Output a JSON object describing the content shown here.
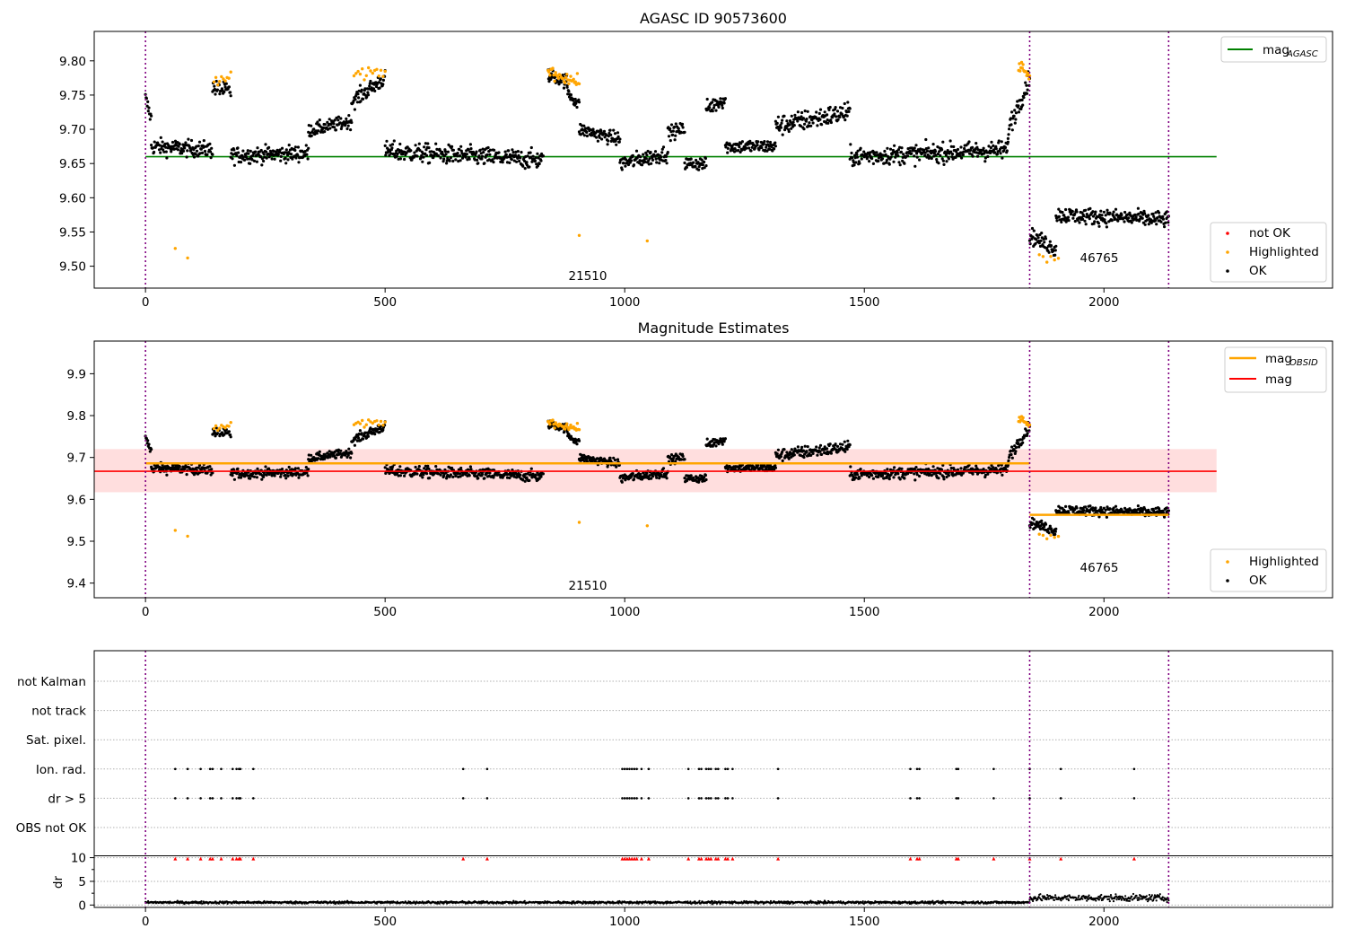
{
  "chart_data": [
    {
      "type": "scatter",
      "title": "AGASC ID 90573600",
      "xlim": [
        -107,
        2477
      ],
      "ylim": [
        9.468,
        9.843
      ],
      "xticks": [
        "0",
        "500",
        "1000",
        "1500",
        "2000"
      ],
      "xtick_values": [
        0,
        500,
        1000,
        1500,
        2000
      ],
      "yticks": [
        "9.50",
        "9.55",
        "9.60",
        "9.65",
        "9.70",
        "9.75",
        "9.80"
      ],
      "ytick_values": [
        9.5,
        9.55,
        9.6,
        9.65,
        9.7,
        9.75,
        9.8
      ],
      "obsid_boundaries": [
        0,
        1845,
        2135
      ],
      "obsid_labels": [
        {
          "text": "21510",
          "x": 922,
          "y": 9.478
        },
        {
          "text": "46765",
          "x": 1992,
          "y": 9.507
        }
      ],
      "reference_lines": [
        {
          "name": "magAGASC",
          "y": 9.66,
          "x": [
            0,
            2235
          ],
          "color": "#008000"
        }
      ],
      "legend_top": {
        "position": "upper right",
        "entries": [
          {
            "label": "mag",
            "sub": "AGASC",
            "color": "#008000"
          }
        ]
      },
      "legend_bottom": {
        "position": "lower right",
        "entries": [
          {
            "label": "not OK",
            "color": "#ff0000"
          },
          {
            "label": "Highlighted",
            "color": "#ffa500"
          },
          {
            "label": "OK",
            "color": "#000000"
          }
        ]
      },
      "segments": [
        {
          "x": [
            0,
            12
          ],
          "y": [
            9.745,
            9.715
          ],
          "scatter": 0.012
        },
        {
          "x": [
            12,
            140
          ],
          "y": [
            9.675,
            9.67
          ],
          "scatter": 0.012
        },
        {
          "x": [
            140,
            178
          ],
          "y": [
            9.76,
            9.755
          ],
          "scatter": 0.012
        },
        {
          "x": [
            178,
            340
          ],
          "y": [
            9.662,
            9.665
          ],
          "scatter": 0.012
        },
        {
          "x": [
            340,
            430
          ],
          "y": [
            9.698,
            9.712
          ],
          "scatter": 0.01
        },
        {
          "x": [
            430,
            500
          ],
          "y": [
            9.74,
            9.775
          ],
          "scatter": 0.012
        },
        {
          "x": [
            500,
            830
          ],
          "y": [
            9.668,
            9.655
          ],
          "scatter": 0.014
        },
        {
          "x": [
            840,
            880
          ],
          "y": [
            9.78,
            9.77
          ],
          "scatter": 0.01
        },
        {
          "x": [
            880,
            905
          ],
          "y": [
            9.755,
            9.735
          ],
          "scatter": 0.01
        },
        {
          "x": [
            905,
            990
          ],
          "y": [
            9.7,
            9.685
          ],
          "scatter": 0.01
        },
        {
          "x": [
            990,
            1090
          ],
          "y": [
            9.65,
            9.665
          ],
          "scatter": 0.012
        },
        {
          "x": [
            1090,
            1125
          ],
          "y": [
            9.695,
            9.7
          ],
          "scatter": 0.01
        },
        {
          "x": [
            1125,
            1170
          ],
          "y": [
            9.65,
            9.65
          ],
          "scatter": 0.01
        },
        {
          "x": [
            1170,
            1210
          ],
          "y": [
            9.73,
            9.745
          ],
          "scatter": 0.012
        },
        {
          "x": [
            1210,
            1315
          ],
          "y": [
            9.675,
            9.675
          ],
          "scatter": 0.01
        },
        {
          "x": [
            1315,
            1470
          ],
          "y": [
            9.705,
            9.725
          ],
          "scatter": 0.015
        },
        {
          "x": [
            1470,
            1800
          ],
          "y": [
            9.66,
            9.67
          ],
          "scatter": 0.014
        },
        {
          "x": [
            1800,
            1845
          ],
          "y": [
            9.7,
            9.775
          ],
          "scatter": 0.015
        },
        {
          "x": [
            1845,
            1900
          ],
          "y": [
            9.545,
            9.525
          ],
          "scatter": 0.012
        },
        {
          "x": [
            1900,
            2135
          ],
          "y": [
            9.575,
            9.568
          ],
          "scatter": 0.012
        }
      ],
      "highlighted": [
        {
          "x": [
            143,
            178
          ],
          "y": [
            9.772,
            9.774
          ],
          "n": 10
        },
        {
          "x": [
            435,
            500
          ],
          "y": [
            9.778,
            9.785
          ],
          "n": 16
        },
        {
          "x": [
            840,
            905
          ],
          "y": [
            9.785,
            9.768
          ],
          "n": 34
        },
        {
          "x": [
            1822,
            1845
          ],
          "y": [
            9.793,
            9.78
          ],
          "n": 16
        },
        {
          "x": [
            1865,
            1905
          ],
          "y": [
            9.512,
            9.506
          ],
          "n": 6
        },
        {
          "x": [
            62,
            62
          ],
          "y": [
            9.526,
            9.526
          ],
          "n": 1
        },
        {
          "x": [
            88,
            88
          ],
          "y": [
            9.512,
            9.512
          ],
          "n": 1
        },
        {
          "x": [
            905,
            905
          ],
          "y": [
            9.545,
            9.545
          ],
          "n": 1
        },
        {
          "x": [
            1047,
            1047
          ],
          "y": [
            9.537,
            9.537
          ],
          "n": 1
        }
      ]
    },
    {
      "type": "scatter",
      "title": "Magnitude Estimates",
      "xlim": [
        -107,
        2477
      ],
      "ylim": [
        9.365,
        9.978
      ],
      "xticks": [
        "0",
        "500",
        "1000",
        "1500",
        "2000"
      ],
      "xtick_values": [
        0,
        500,
        1000,
        1500,
        2000
      ],
      "yticks": [
        "9.4",
        "9.5",
        "9.6",
        "9.7",
        "9.8",
        "9.9"
      ],
      "ytick_values": [
        9.4,
        9.5,
        9.6,
        9.7,
        9.8,
        9.9
      ],
      "obsid_boundaries": [
        0,
        1845,
        2135
      ],
      "obsid_labels": [
        {
          "text": "21510",
          "x": 922,
          "y": 9.378
        },
        {
          "text": "46765",
          "x": 1992,
          "y": 9.432
        }
      ],
      "band": {
        "y": [
          9.617,
          9.72
        ],
        "x": [
          -107,
          2235
        ],
        "color": "#ffd0d0"
      },
      "reference_lines": [
        {
          "name": "mag",
          "y": 9.667,
          "x": [
            -107,
            2235
          ],
          "color": "#ff0000"
        },
        {
          "name": "magOBSID",
          "y": 9.686,
          "x": [
            0,
            1845
          ],
          "color": "#ffa500"
        },
        {
          "name": "magOBSID",
          "y": 9.563,
          "x": [
            1845,
            2135
          ],
          "color": "#ffa500"
        }
      ],
      "legend_top": {
        "position": "upper right",
        "entries": [
          {
            "label": "mag",
            "sub": "OBSID",
            "color": "#ffa500"
          },
          {
            "label": "mag",
            "sub": "",
            "color": "#ff0000"
          }
        ]
      },
      "legend_bottom": {
        "position": "lower right",
        "entries": [
          {
            "label": "Highlighted",
            "color": "#ffa500"
          },
          {
            "label": "OK",
            "color": "#000000"
          }
        ]
      }
    },
    {
      "type": "scatter",
      "title": "",
      "xlim": [
        -107,
        2477
      ],
      "xticks": [
        "0",
        "500",
        "1000",
        "1500",
        "2000"
      ],
      "xtick_values": [
        0,
        500,
        1000,
        1500,
        2000
      ],
      "flag_rows": [
        "not Kalman",
        "not track",
        "Sat. pixel.",
        "Ion. rad.",
        "dr > 5",
        "OBS not OK"
      ],
      "flag_points": {
        "Ion. rad.": [
          62,
          88,
          115,
          135,
          140,
          158,
          182,
          190,
          195,
          198,
          225,
          663,
          713,
          995,
          1000,
          1005,
          1010,
          1015,
          1020,
          1025,
          1035,
          1050,
          1133,
          1155,
          1160,
          1170,
          1175,
          1180,
          1190,
          1195,
          1210,
          1215,
          1225,
          1320,
          1596,
          1610,
          1615,
          1692,
          1696,
          1770,
          1845,
          1910,
          2063
        ],
        "dr > 5": [
          62,
          88,
          115,
          135,
          140,
          158,
          182,
          190,
          195,
          198,
          225,
          663,
          713,
          995,
          1000,
          1005,
          1010,
          1015,
          1020,
          1025,
          1035,
          1050,
          1133,
          1155,
          1160,
          1170,
          1175,
          1180,
          1190,
          1195,
          1210,
          1215,
          1225,
          1320,
          1596,
          1610,
          1615,
          1692,
          1696,
          1770,
          1845,
          1910,
          2063
        ]
      },
      "dr": {
        "ylabel": "dr",
        "yticks": [
          "0",
          "5",
          "10"
        ],
        "ytick_values": [
          0,
          5,
          10
        ],
        "ylim": [
          -0.5,
          10.3
        ],
        "clip_marker_y": 9.8,
        "baseline_segments": [
          {
            "x": [
              0,
              1845
            ],
            "y": 0.55
          },
          {
            "x": [
              1845,
              2135
            ],
            "y": 1.5
          }
        ]
      },
      "obsid_boundaries": [
        0,
        1845,
        2135
      ]
    }
  ]
}
